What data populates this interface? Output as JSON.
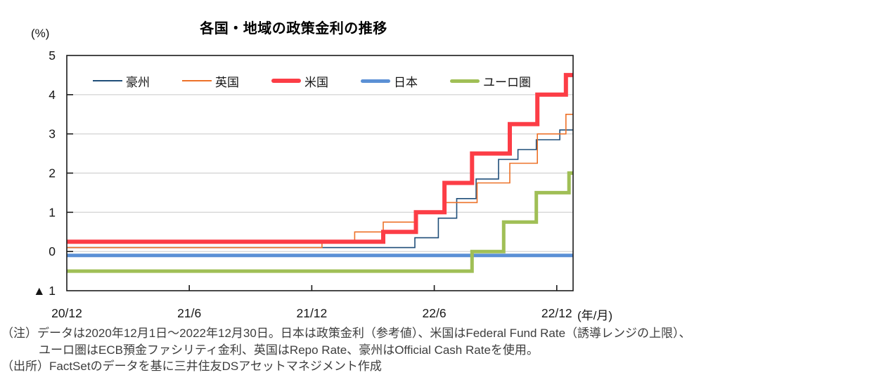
{
  "chart_data": {
    "type": "line",
    "subtype": "step",
    "title": "各国・地域の政策金利の推移",
    "y_unit_label": "(%)",
    "x_unit_label": "(年/月)",
    "xlabel": "",
    "ylabel": "(%)",
    "ylim": [
      -1,
      5
    ],
    "xlim_months_since_2020_12": [
      0,
      24.8
    ],
    "grid": "horizontal",
    "legend_position": "top-inside",
    "y_gridline_values": [
      4,
      3,
      2,
      1,
      0
    ],
    "y_ticks": [
      {
        "v": 5,
        "label": "5"
      },
      {
        "v": 4,
        "label": "4"
      },
      {
        "v": 3,
        "label": "3"
      },
      {
        "v": 2,
        "label": "2"
      },
      {
        "v": 1,
        "label": "1"
      },
      {
        "v": 0,
        "label": "0"
      },
      {
        "v": -1,
        "label": "▲ 1"
      }
    ],
    "x_ticks": [
      {
        "m": 0,
        "label": "20/12"
      },
      {
        "m": 6,
        "label": "21/6"
      },
      {
        "m": 12,
        "label": "21/12"
      },
      {
        "m": 18,
        "label": "22/6"
      },
      {
        "m": 24,
        "label": "22/12"
      }
    ],
    "colors": {
      "grid": "#d7d7d7",
      "axis": "#1a1a1a",
      "text": "#161616"
    },
    "series": [
      {
        "key": "australia",
        "name": "豪州",
        "color": "#1f4e79",
        "width": 1.6,
        "steps_month_rate": [
          [
            0,
            0.1
          ],
          [
            17.05,
            0.35
          ],
          [
            18.2,
            0.85
          ],
          [
            19.1,
            1.35
          ],
          [
            20.05,
            1.85
          ],
          [
            21.15,
            2.35
          ],
          [
            22.1,
            2.6
          ],
          [
            23.0,
            2.85
          ],
          [
            24.15,
            3.1
          ]
        ]
      },
      {
        "key": "uk",
        "name": "英国",
        "color": "#ed7128",
        "width": 1.6,
        "steps_month_rate": [
          [
            0,
            0.1
          ],
          [
            12.5,
            0.25
          ],
          [
            14.1,
            0.5
          ],
          [
            15.5,
            0.75
          ],
          [
            17.1,
            1.0
          ],
          [
            18.5,
            1.25
          ],
          [
            20.1,
            1.75
          ],
          [
            21.7,
            2.25
          ],
          [
            23.05,
            3.0
          ],
          [
            24.45,
            3.5
          ]
        ]
      },
      {
        "key": "us",
        "name": "米国",
        "color": "#fc3d46",
        "width": 6,
        "steps_month_rate": [
          [
            0,
            0.25
          ],
          [
            15.5,
            0.5
          ],
          [
            17.1,
            1.0
          ],
          [
            18.5,
            1.75
          ],
          [
            19.85,
            2.5
          ],
          [
            21.7,
            3.25
          ],
          [
            23.05,
            4.0
          ],
          [
            24.45,
            4.5
          ]
        ]
      },
      {
        "key": "japan",
        "name": "日本",
        "color": "#5b90d5",
        "width": 5,
        "steps_month_rate": [
          [
            0,
            -0.1
          ]
        ]
      },
      {
        "key": "eurozone",
        "name": "ユーロ圏",
        "color": "#a0bf56",
        "width": 5,
        "steps_month_rate": [
          [
            0,
            -0.5
          ],
          [
            19.85,
            0.0
          ],
          [
            21.4,
            0.75
          ],
          [
            23.0,
            1.5
          ],
          [
            24.6,
            2.0
          ]
        ]
      }
    ]
  },
  "notes": {
    "line1": "（注）データは2020年12月1日～2022年12月30日。日本は政策金利（参考値）、米国はFederal Fund Rate（誘導レンジの上限）、",
    "line2": "ユーロ圏はECB預金ファシリティ金利、英国はRepo Rate、豪州はOfficial Cash Rateを使用。",
    "line3": "（出所）FactSetのデータを基に三井住友DSアセットマネジメント作成"
  }
}
